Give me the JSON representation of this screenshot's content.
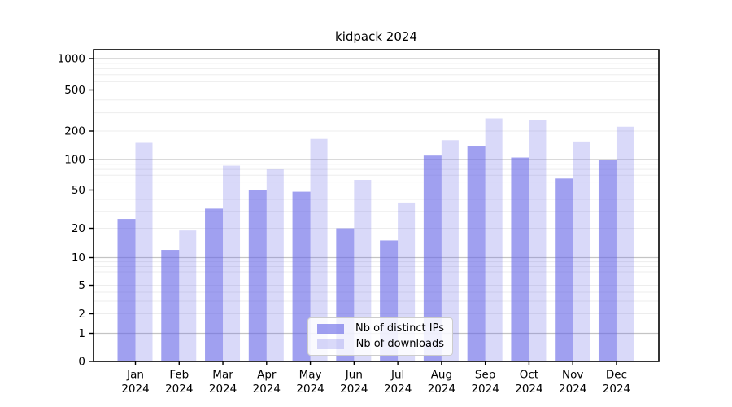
{
  "chart_data": {
    "type": "bar",
    "title": "kidpack 2024",
    "categories": [
      "Jan",
      "Feb",
      "Mar",
      "Apr",
      "May",
      "Jun",
      "Jul",
      "Aug",
      "Sep",
      "Oct",
      "Nov",
      "Dec"
    ],
    "category_year_line": "2024",
    "series": [
      {
        "name": "Nb of distinct IPs",
        "color": "rgba(102,102,230,0.62)",
        "values": [
          25,
          12,
          32,
          50,
          48,
          20,
          15,
          110,
          140,
          105,
          65,
          100
        ]
      },
      {
        "name": "Nb of downloads",
        "color": "rgba(102,102,230,0.25)",
        "values": [
          150,
          19,
          87,
          80,
          165,
          63,
          37,
          160,
          265,
          255,
          155,
          220
        ]
      }
    ],
    "yscale": "symlog",
    "ylim": [
      0,
      1000
    ],
    "y_tick_labels": [
      "0",
      "1",
      "2",
      "5",
      "10",
      "20",
      "50",
      "100",
      "200",
      "500",
      "1000"
    ],
    "grid": "on",
    "legend_position": "lower center",
    "colors": {
      "major_grid": "#c4c4c4",
      "minor_grid": "#ededed",
      "axis": "#000000"
    }
  }
}
